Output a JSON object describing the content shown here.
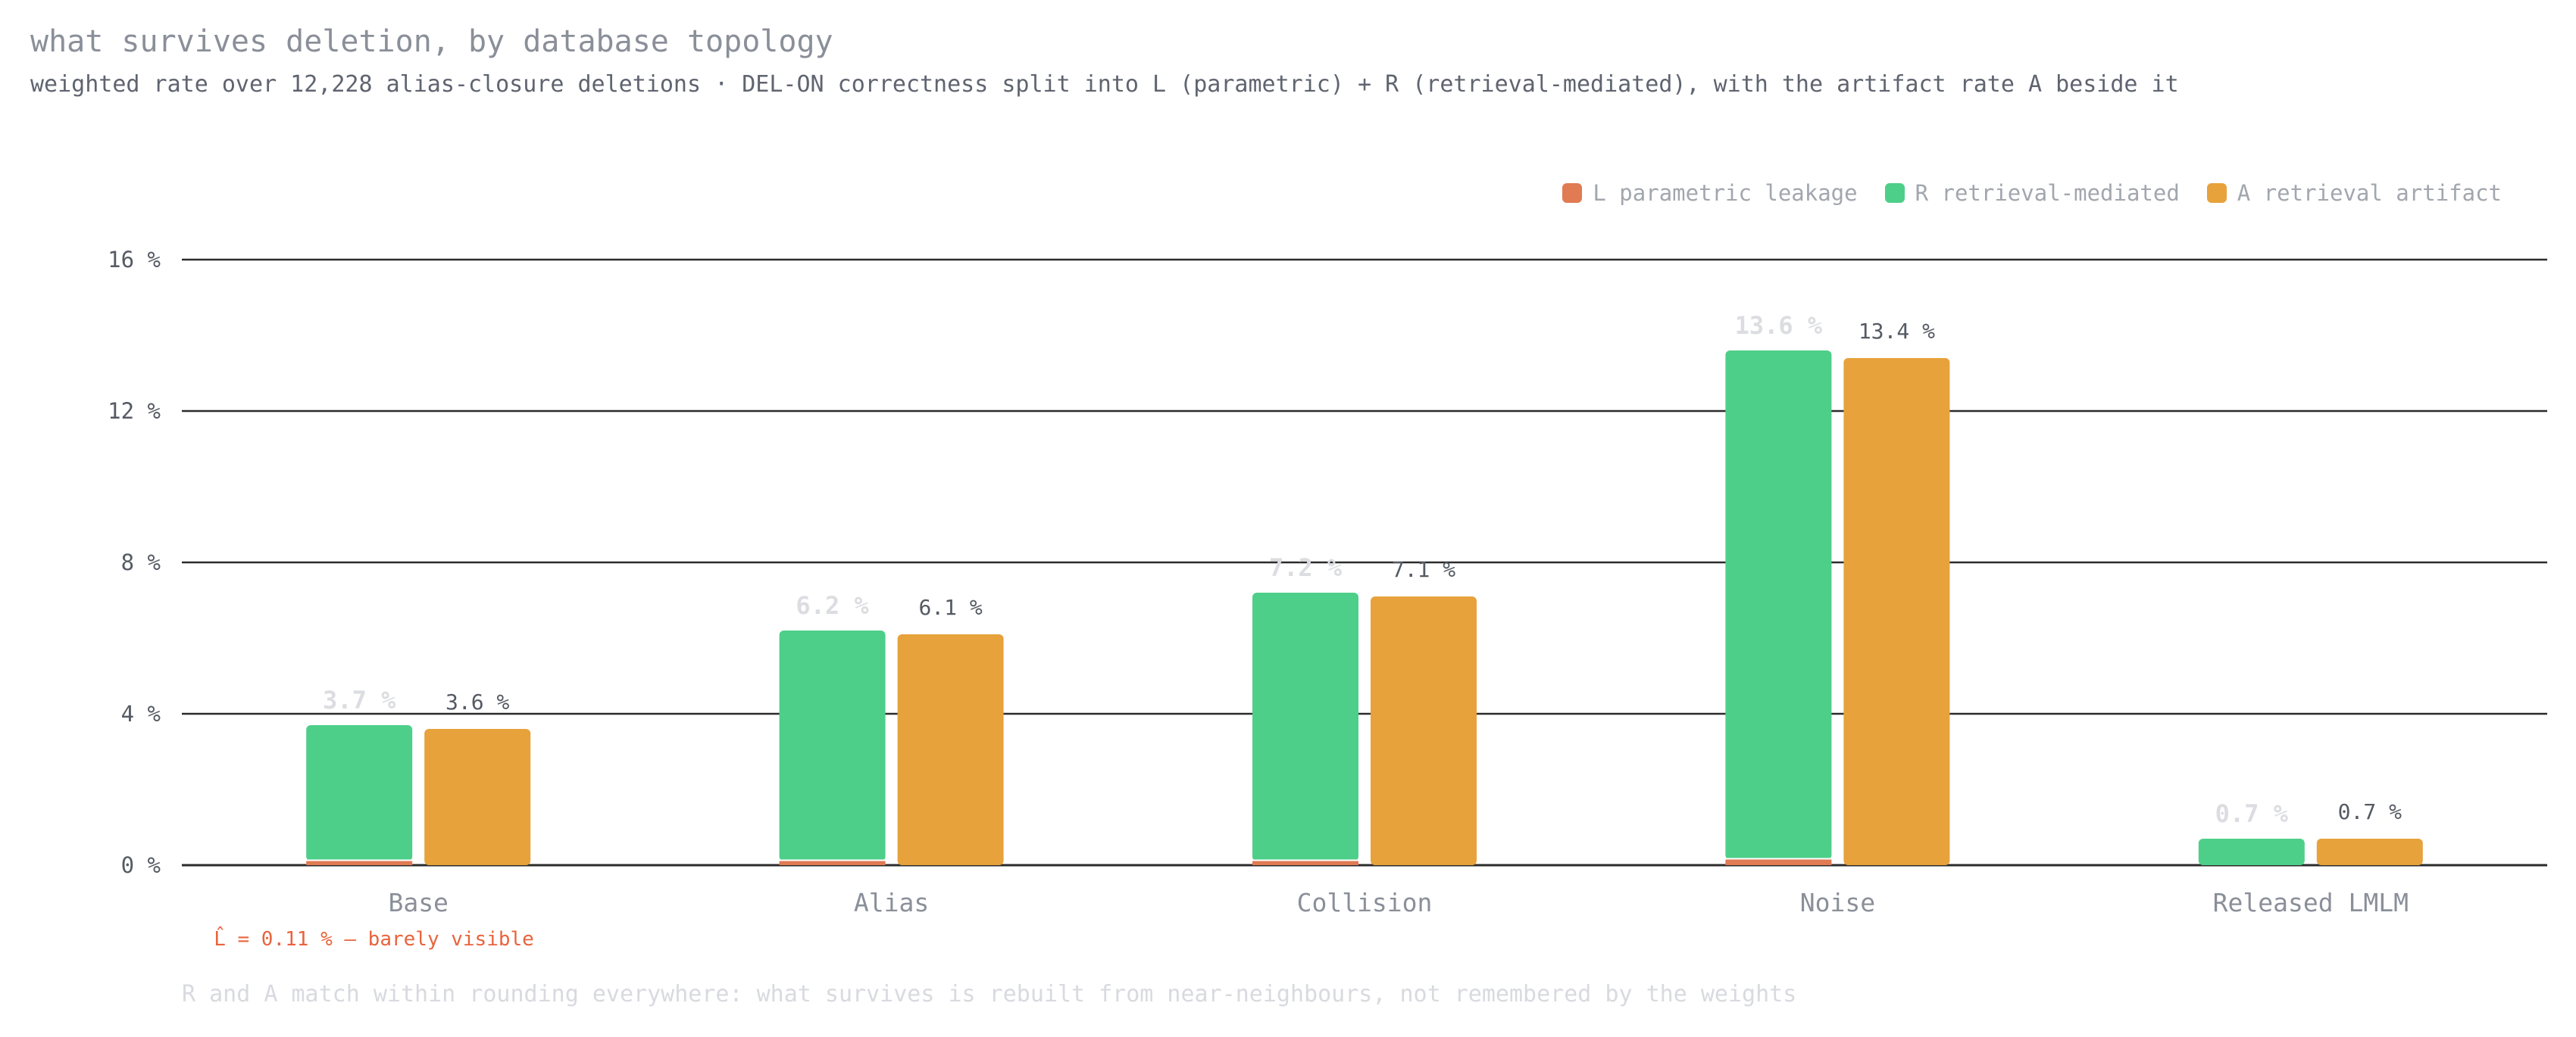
{
  "title": "what survives deletion, by database topology",
  "subtitle": "weighted rate over 12,228 alias-closure deletions · DEL-ON correctness split into L (parametric) + R (retrieval-mediated), with the artifact rate A beside it",
  "footnote": "R and A match within rounding everywhere: what survives is rebuilt from near-neighbours, not remembered by the weights",
  "annotation": "L̂ = 0.11 % — barely visible",
  "colors": {
    "L": "#e07b54",
    "R": "#4ecf89",
    "A": "#e7a23b",
    "annotation": "#e8643c"
  },
  "chart_data": {
    "type": "bar",
    "categories": [
      "Base",
      "Alias",
      "Collision",
      "Noise",
      "Released LMLM"
    ],
    "series": [
      {
        "name": "L parametric leakage",
        "key": "L",
        "stack": "DEL-ON",
        "values": [
          0.11,
          0.11,
          0.11,
          0.15,
          0.0
        ]
      },
      {
        "name": "R retrieval-mediated",
        "key": "R",
        "stack": "DEL-ON",
        "values": [
          3.59,
          6.09,
          7.09,
          13.45,
          0.7
        ]
      },
      {
        "name": "A retrieval artifact",
        "key": "A",
        "stack": "artifact",
        "values": [
          3.6,
          6.1,
          7.1,
          13.4,
          0.7
        ]
      }
    ],
    "stack_totals_labels": [
      "3.7 %",
      "6.2 %",
      "7.2 %",
      "13.6 %",
      "0.7 %"
    ],
    "artifact_labels": [
      "3.6 %",
      "6.1 %",
      "7.1 %",
      "13.4 %",
      "0.7 %"
    ],
    "ylim": [
      0,
      16
    ],
    "yticks": [
      0,
      4,
      8,
      12,
      16
    ],
    "ytick_labels": [
      "0 %",
      "4 %",
      "8 %",
      "12 %",
      "16 %"
    ],
    "xlabel": "",
    "ylabel": "",
    "grid": true,
    "legend_position": "top-right"
  }
}
